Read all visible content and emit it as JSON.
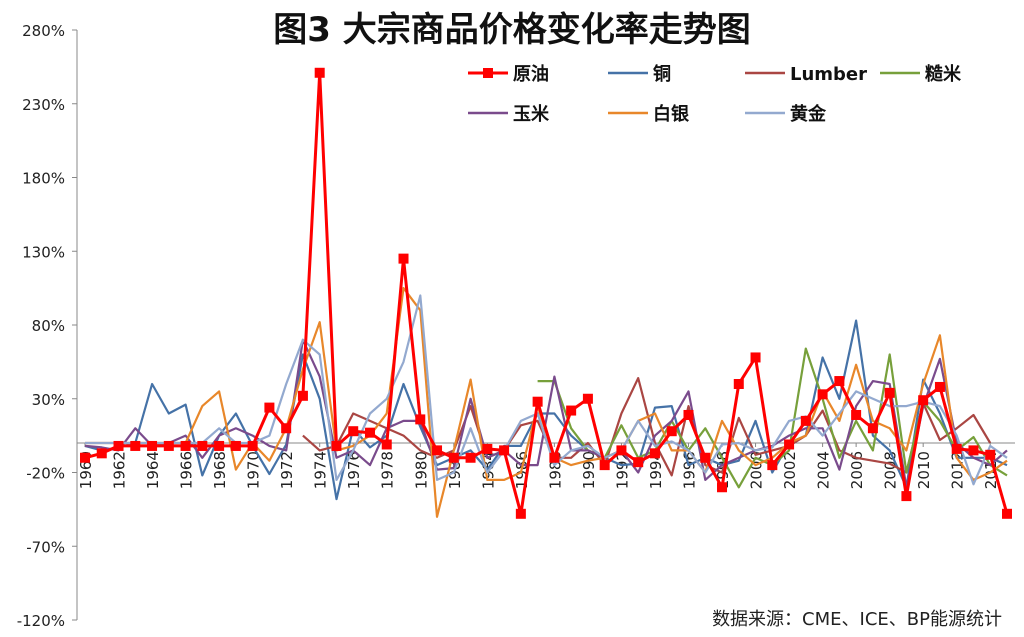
{
  "chart_data": {
    "type": "line",
    "title": "图3 大宗商品价格变化率走势图",
    "source": "数据来源：CME、ICE、BP能源统计",
    "xlabel": "",
    "ylabel": "",
    "ylim": [
      -120,
      280
    ],
    "yticks": [
      "280%",
      "230%",
      "180%",
      "130%",
      "80%",
      "30%",
      "-20%",
      "-70%",
      "-120%"
    ],
    "ytick_values": [
      280,
      230,
      180,
      130,
      80,
      30,
      -20,
      -70,
      -120
    ],
    "xlim": [
      1960,
      2015
    ],
    "xtick_labels": [
      "1960",
      "1962",
      "1964",
      "1966",
      "1968",
      "1970",
      "1972",
      "1974",
      "1976",
      "1978",
      "1980",
      "1982",
      "1984",
      "1986",
      "1988",
      "1990",
      "1992",
      "1994",
      "1996",
      "1998",
      "2000",
      "2002",
      "2004",
      "2006",
      "2008",
      "2010",
      "2012",
      "2014"
    ],
    "grid": false,
    "legend_position": "top",
    "series": [
      {
        "name": "原油",
        "color": "#FF0000",
        "marker": "square",
        "x": [
          1960,
          1961,
          1962,
          1963,
          1964,
          1965,
          1966,
          1967,
          1968,
          1969,
          1970,
          1971,
          1972,
          1973,
          1974,
          1975,
          1976,
          1977,
          1978,
          1979,
          1980,
          1981,
          1982,
          1983,
          1984,
          1985,
          1986,
          1987,
          1988,
          1989,
          1990,
          1991,
          1992,
          1993,
          1994,
          1995,
          1996,
          1997,
          1998,
          1999,
          2000,
          2001,
          2002,
          2003,
          2004,
          2005,
          2006,
          2007,
          2008,
          2009,
          2010,
          2011,
          2012,
          2013,
          2014,
          2015
        ],
        "values": [
          -10,
          -7,
          -2,
          -2,
          -2,
          -2,
          -2,
          -2,
          -2,
          -2,
          -2,
          24,
          10,
          32,
          251,
          -2,
          8,
          7,
          -1,
          125,
          16,
          -5,
          -10,
          -10,
          -4,
          -5,
          -48,
          28,
          -10,
          22,
          30,
          -15,
          -5,
          -13,
          -7,
          8,
          19,
          -10,
          -30,
          40,
          58,
          -15,
          -1,
          15,
          33,
          42,
          19,
          10,
          34,
          -36,
          29,
          38,
          -4,
          -5,
          -8,
          -48
        ]
      },
      {
        "name": "铜",
        "color": "#4572A7",
        "marker": "none",
        "x": [
          1960,
          1961,
          1962,
          1963,
          1964,
          1965,
          1966,
          1967,
          1968,
          1969,
          1970,
          1971,
          1972,
          1973,
          1974,
          1975,
          1976,
          1977,
          1978,
          1979,
          1980,
          1981,
          1982,
          1983,
          1984,
          1985,
          1986,
          1987,
          1988,
          1989,
          1990,
          1991,
          1992,
          1993,
          1994,
          1995,
          1996,
          1997,
          1998,
          1999,
          2000,
          2001,
          2002,
          2003,
          2004,
          2005,
          2006,
          2007,
          2008,
          2009,
          2010,
          2011,
          2012,
          2013,
          2014,
          2015
        ],
        "values": [
          -2,
          -5,
          -3,
          0,
          40,
          20,
          26,
          -22,
          5,
          20,
          -2,
          -21,
          -1,
          60,
          30,
          -38,
          10,
          -3,
          5,
          40,
          11,
          -15,
          -10,
          -5,
          -18,
          -2,
          -2,
          20,
          20,
          5,
          -5,
          -10,
          -15,
          -14,
          24,
          25,
          -15,
          -10,
          -15,
          -12,
          15,
          -20,
          0,
          5,
          58,
          30,
          83,
          5,
          -5,
          -30,
          43,
          20,
          -10,
          -10,
          -10,
          -15
        ]
      },
      {
        "name": "Lumber",
        "color": "#AA4643",
        "marker": "none",
        "x": [
          1973,
          1974,
          1975,
          1976,
          1977,
          1978,
          1979,
          1980,
          1981,
          1982,
          1983,
          1984,
          1985,
          1986,
          1987,
          1988,
          1989,
          1990,
          1991,
          1992,
          1993,
          1994,
          1995,
          1996,
          1997,
          1998,
          1999,
          2000,
          2001,
          2002,
          2003,
          2004,
          2005,
          2006,
          2007,
          2008,
          2009,
          2010,
          2011,
          2012,
          2013,
          2014
        ],
        "values": [
          5,
          -5,
          -2,
          20,
          15,
          10,
          5,
          -5,
          -10,
          -5,
          25,
          -10,
          -5,
          12,
          15,
          -10,
          -10,
          0,
          -15,
          20,
          44,
          0,
          -22,
          25,
          -15,
          -20,
          17,
          -8,
          -5,
          -2,
          5,
          22,
          -5,
          -10,
          -12,
          -14,
          -20,
          27,
          2,
          10,
          19,
          0
        ]
      },
      {
        "name": "糙米",
        "color": "#77A03B",
        "marker": "none",
        "x": [
          1987,
          1988,
          1989,
          1990,
          1991,
          1992,
          1993,
          1994,
          1995,
          1996,
          1997,
          1998,
          1999,
          2000,
          2001,
          2002,
          2003,
          2004,
          2005,
          2006,
          2007,
          2008,
          2009,
          2010,
          2011,
          2012,
          2013,
          2014,
          2015
        ],
        "values": [
          42,
          42,
          10,
          -5,
          -10,
          12,
          -10,
          -5,
          15,
          -5,
          10,
          -10,
          -30,
          -10,
          -15,
          -5,
          64,
          30,
          -10,
          15,
          -5,
          60,
          -20,
          28,
          15,
          -5,
          4,
          -15,
          -22
        ]
      },
      {
        "name": "玉米",
        "color": "#7A4B8C",
        "marker": "none",
        "x": [
          1960,
          1961,
          1962,
          1963,
          1964,
          1965,
          1966,
          1967,
          1968,
          1969,
          1970,
          1971,
          1972,
          1973,
          1974,
          1975,
          1976,
          1977,
          1978,
          1979,
          1980,
          1981,
          1982,
          1983,
          1984,
          1985,
          1986,
          1987,
          1988,
          1989,
          1990,
          1991,
          1992,
          1993,
          1994,
          1995,
          1996,
          1997,
          1998,
          1999,
          2000,
          2001,
          2002,
          2003,
          2004,
          2005,
          2006,
          2007,
          2008,
          2009,
          2010,
          2011,
          2012,
          2013,
          2014,
          2015
        ],
        "values": [
          -2,
          -3,
          -5,
          10,
          -2,
          0,
          5,
          -10,
          5,
          10,
          5,
          -2,
          -5,
          70,
          45,
          -10,
          -5,
          -15,
          10,
          15,
          15,
          -18,
          -17,
          30,
          -10,
          -5,
          -15,
          -15,
          45,
          -5,
          -5,
          -10,
          -5,
          -20,
          5,
          15,
          35,
          -25,
          -15,
          -10,
          -5,
          -2,
          5,
          10,
          10,
          -18,
          25,
          42,
          40,
          -30,
          25,
          57,
          0,
          -10,
          -15,
          -5
        ]
      },
      {
        "name": "白银",
        "color": "#E8872A",
        "marker": "none",
        "x": [
          1960,
          1961,
          1962,
          1963,
          1964,
          1965,
          1966,
          1967,
          1968,
          1969,
          1970,
          1971,
          1972,
          1973,
          1974,
          1975,
          1976,
          1977,
          1978,
          1979,
          1980,
          1981,
          1982,
          1983,
          1984,
          1985,
          1986,
          1987,
          1988,
          1989,
          1990,
          1991,
          1992,
          1993,
          1994,
          1995,
          1996,
          1997,
          1998,
          1999,
          2000,
          2001,
          2002,
          2003,
          2004,
          2005,
          2006,
          2007,
          2008,
          2009,
          2010,
          2011,
          2012,
          2013,
          2014,
          2015
        ],
        "values": [
          0,
          0,
          0,
          0,
          0,
          0,
          0,
          25,
          35,
          -18,
          0,
          -12,
          10,
          50,
          82,
          -5,
          -2,
          5,
          20,
          105,
          90,
          -50,
          -5,
          43,
          -25,
          -25,
          -20,
          25,
          -10,
          -15,
          -12,
          -10,
          -5,
          15,
          20,
          -5,
          -5,
          -20,
          15,
          -5,
          -15,
          -10,
          0,
          5,
          35,
          15,
          53,
          15,
          10,
          -5,
          40,
          73,
          -10,
          -25,
          -20,
          -12
        ]
      },
      {
        "name": "黄金",
        "color": "#93A9CF",
        "marker": "none",
        "x": [
          1960,
          1961,
          1962,
          1963,
          1964,
          1965,
          1966,
          1967,
          1968,
          1969,
          1970,
          1971,
          1972,
          1973,
          1974,
          1975,
          1976,
          1977,
          1978,
          1979,
          1980,
          1981,
          1982,
          1983,
          1984,
          1985,
          1986,
          1987,
          1988,
          1989,
          1990,
          1991,
          1992,
          1993,
          1994,
          1995,
          1996,
          1997,
          1998,
          1999,
          2000,
          2001,
          2002,
          2003,
          2004,
          2005,
          2006,
          2007,
          2008,
          2009,
          2010,
          2011,
          2012,
          2013,
          2014,
          2015
        ],
        "values": [
          0,
          0,
          0,
          0,
          0,
          0,
          0,
          0,
          10,
          0,
          0,
          5,
          40,
          70,
          60,
          -25,
          -5,
          20,
          30,
          55,
          100,
          -25,
          -20,
          10,
          -20,
          -5,
          15,
          20,
          -15,
          -5,
          -2,
          -10,
          -5,
          15,
          -2,
          1,
          -5,
          -20,
          -1,
          0,
          -5,
          -3,
          15,
          18,
          5,
          20,
          35,
          30,
          25,
          25,
          28,
          25,
          5,
          -28,
          -2,
          -10
        ]
      }
    ]
  }
}
